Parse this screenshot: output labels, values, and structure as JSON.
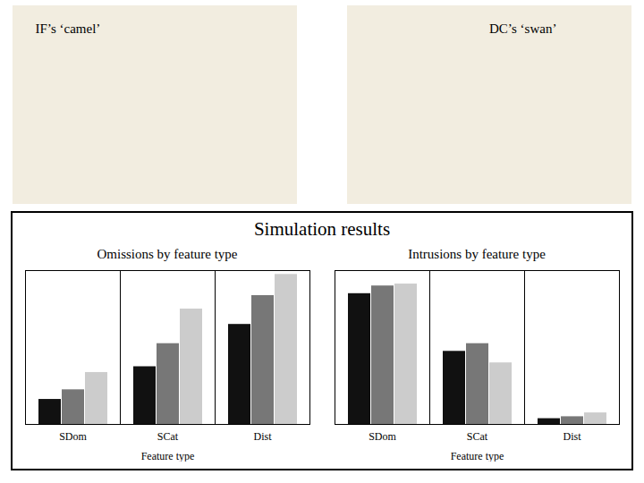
{
  "chart_data": [
    {
      "type": "bar",
      "title": "Omissions by feature type",
      "annotations": [
        "IF’s ‘camel’",
        "DC’s ‘swan’",
        "Simulation results"
      ],
      "xlabel": "Feature type",
      "categories": [
        "SDom",
        "SCat",
        "Dist"
      ],
      "series": [
        {
          "color": "#111111",
          "values": [
            0.13,
            0.3,
            0.52
          ]
        },
        {
          "color": "#777777",
          "values": [
            0.18,
            0.42,
            0.67
          ]
        },
        {
          "color": "#cccccc",
          "values": [
            0.27,
            0.6,
            0.78
          ]
        }
      ],
      "ylim": [
        0,
        0.8
      ],
      "tick_labels": "x"
    },
    {
      "type": "bar",
      "title": "Intrusions by feature type",
      "xlabel": "Feature type",
      "categories": [
        "SDom",
        "SCat",
        "Dist"
      ],
      "series": [
        {
          "color": "#111111",
          "values": [
            0.68,
            0.38,
            0.03
          ]
        },
        {
          "color": "#777777",
          "values": [
            0.72,
            0.42,
            0.04
          ]
        },
        {
          "color": "#cccccc",
          "values": [
            0.73,
            0.32,
            0.06
          ]
        }
      ],
      "ylim": [
        0,
        0.8
      ],
      "tick_labels": "x"
    }
  ]
}
